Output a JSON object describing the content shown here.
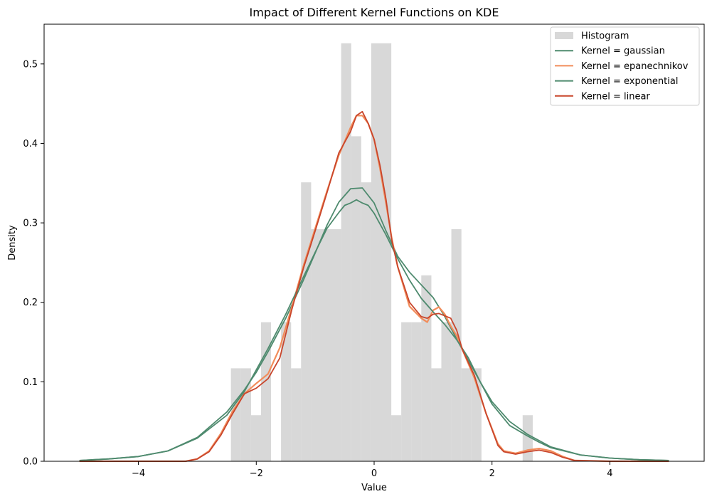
{
  "chart_data": {
    "type": "histogram+kde",
    "title": "Impact of Different Kernel Functions on KDE",
    "xlabel": "Value",
    "ylabel": "Density",
    "xlim": [
      -5.6,
      5.6
    ],
    "ylim": [
      0,
      0.55
    ],
    "xticks": [
      -4,
      -2,
      0,
      2,
      4
    ],
    "xtick_labels": [
      "−4",
      "−2",
      "0",
      "2",
      "4"
    ],
    "yticks": [
      0.0,
      0.1,
      0.2,
      0.3,
      0.4,
      0.5
    ],
    "ytick_labels": [
      "0.0",
      "0.1",
      "0.2",
      "0.3",
      "0.4",
      "0.5"
    ],
    "grid": false,
    "legend_position": "upper right",
    "histogram": {
      "name": "Histogram",
      "color": "#d8d8d8",
      "bin_width": 0.171,
      "bins": [
        {
          "x0": -2.43,
          "h": 0.117
        },
        {
          "x0": -2.26,
          "h": 0.117
        },
        {
          "x0": -2.09,
          "h": 0.058
        },
        {
          "x0": -1.92,
          "h": 0.175
        },
        {
          "x0": -1.58,
          "h": 0.175
        },
        {
          "x0": -1.41,
          "h": 0.117
        },
        {
          "x0": -1.24,
          "h": 0.351
        },
        {
          "x0": -1.07,
          "h": 0.292
        },
        {
          "x0": -0.9,
          "h": 0.292
        },
        {
          "x0": -0.73,
          "h": 0.292
        },
        {
          "x0": -0.56,
          "h": 0.526
        },
        {
          "x0": -0.39,
          "h": 0.409
        },
        {
          "x0": -0.22,
          "h": 0.351
        },
        {
          "x0": -0.05,
          "h": 0.526
        },
        {
          "x0": 0.12,
          "h": 0.526
        },
        {
          "x0": 0.29,
          "h": 0.058
        },
        {
          "x0": 0.46,
          "h": 0.175
        },
        {
          "x0": 0.63,
          "h": 0.175
        },
        {
          "x0": 0.8,
          "h": 0.234
        },
        {
          "x0": 0.97,
          "h": 0.117
        },
        {
          "x0": 1.14,
          "h": 0.175
        },
        {
          "x0": 1.31,
          "h": 0.292
        },
        {
          "x0": 1.48,
          "h": 0.117
        },
        {
          "x0": 1.65,
          "h": 0.117
        },
        {
          "x0": 2.52,
          "h": 0.058
        }
      ]
    },
    "series": [
      {
        "name": "Kernel = gaussian",
        "color": "#4e8a6e",
        "x": [
          -5,
          -4.5,
          -4,
          -3.5,
          -3,
          -2.5,
          -2.2,
          -2,
          -1.8,
          -1.5,
          -1.2,
          -1,
          -0.8,
          -0.6,
          -0.4,
          -0.2,
          0,
          0.2,
          0.4,
          0.6,
          0.8,
          1.0,
          1.2,
          1.5,
          1.8,
          2.0,
          2.3,
          2.6,
          3.0,
          3.5,
          4,
          4.5,
          5
        ],
        "values": [
          0.001,
          0.003,
          0.006,
          0.013,
          0.03,
          0.062,
          0.09,
          0.112,
          0.138,
          0.18,
          0.228,
          0.262,
          0.297,
          0.326,
          0.343,
          0.344,
          0.325,
          0.29,
          0.258,
          0.238,
          0.222,
          0.206,
          0.182,
          0.14,
          0.1,
          0.075,
          0.05,
          0.034,
          0.018,
          0.008,
          0.004,
          0.002,
          0.001
        ]
      },
      {
        "name": "Kernel = epanechnikov",
        "color": "#f28c5a",
        "x": [
          -5,
          -4,
          -3.2,
          -3.0,
          -2.8,
          -2.6,
          -2.4,
          -2.2,
          -2.0,
          -1.8,
          -1.6,
          -1.4,
          -1.2,
          -1.0,
          -0.8,
          -0.6,
          -0.4,
          -0.3,
          -0.2,
          -0.1,
          0.0,
          0.1,
          0.2,
          0.3,
          0.4,
          0.6,
          0.8,
          0.9,
          1.0,
          1.1,
          1.2,
          1.3,
          1.4,
          1.5,
          1.7,
          1.9,
          2.1,
          2.2,
          2.4,
          2.6,
          2.8,
          3.0,
          3.2,
          3.4,
          4,
          5
        ],
        "values": [
          0.0,
          0.0,
          0.0,
          0.003,
          0.013,
          0.035,
          0.063,
          0.085,
          0.098,
          0.11,
          0.143,
          0.193,
          0.246,
          0.293,
          0.34,
          0.385,
          0.42,
          0.435,
          0.435,
          0.425,
          0.405,
          0.368,
          0.325,
          0.28,
          0.245,
          0.195,
          0.18,
          0.175,
          0.19,
          0.194,
          0.185,
          0.17,
          0.158,
          0.14,
          0.105,
          0.06,
          0.022,
          0.013,
          0.01,
          0.014,
          0.016,
          0.013,
          0.006,
          0.001,
          0.0,
          0.0
        ]
      },
      {
        "name": "Kernel = exponential",
        "color": "#4e8a6e",
        "x": [
          -5,
          -4.5,
          -4,
          -3.5,
          -3,
          -2.5,
          -2.2,
          -2,
          -1.8,
          -1.5,
          -1.2,
          -1,
          -0.8,
          -0.6,
          -0.5,
          -0.4,
          -0.3,
          -0.2,
          -0.1,
          0,
          0.2,
          0.4,
          0.6,
          0.8,
          1.0,
          1.2,
          1.4,
          1.6,
          1.8,
          2.0,
          2.3,
          2.6,
          2.8,
          3.0,
          3.5,
          4,
          4.5,
          5
        ],
        "values": [
          0.001,
          0.003,
          0.006,
          0.013,
          0.029,
          0.058,
          0.088,
          0.115,
          0.142,
          0.185,
          0.232,
          0.263,
          0.293,
          0.313,
          0.322,
          0.325,
          0.329,
          0.325,
          0.322,
          0.312,
          0.285,
          0.255,
          0.228,
          0.205,
          0.188,
          0.172,
          0.153,
          0.13,
          0.1,
          0.072,
          0.045,
          0.032,
          0.024,
          0.017,
          0.008,
          0.004,
          0.002,
          0.001
        ]
      },
      {
        "name": "Kernel = linear",
        "color": "#c9462c",
        "x": [
          -5,
          -4,
          -3.2,
          -3.0,
          -2.8,
          -2.6,
          -2.4,
          -2.2,
          -2.0,
          -1.8,
          -1.6,
          -1.4,
          -1.2,
          -1.0,
          -0.8,
          -0.6,
          -0.4,
          -0.3,
          -0.2,
          -0.1,
          0.0,
          0.1,
          0.2,
          0.3,
          0.4,
          0.6,
          0.8,
          0.9,
          1.0,
          1.1,
          1.2,
          1.3,
          1.4,
          1.5,
          1.7,
          1.9,
          2.1,
          2.2,
          2.4,
          2.6,
          2.8,
          3.0,
          3.2,
          3.4,
          4,
          5
        ],
        "values": [
          0.0,
          0.0,
          0.0,
          0.003,
          0.012,
          0.033,
          0.06,
          0.085,
          0.092,
          0.104,
          0.13,
          0.19,
          0.243,
          0.29,
          0.338,
          0.388,
          0.415,
          0.435,
          0.44,
          0.425,
          0.405,
          0.372,
          0.33,
          0.278,
          0.245,
          0.2,
          0.182,
          0.18,
          0.185,
          0.186,
          0.183,
          0.18,
          0.165,
          0.14,
          0.108,
          0.06,
          0.02,
          0.012,
          0.009,
          0.012,
          0.014,
          0.011,
          0.005,
          0.001,
          0.0,
          0.0
        ]
      }
    ]
  }
}
